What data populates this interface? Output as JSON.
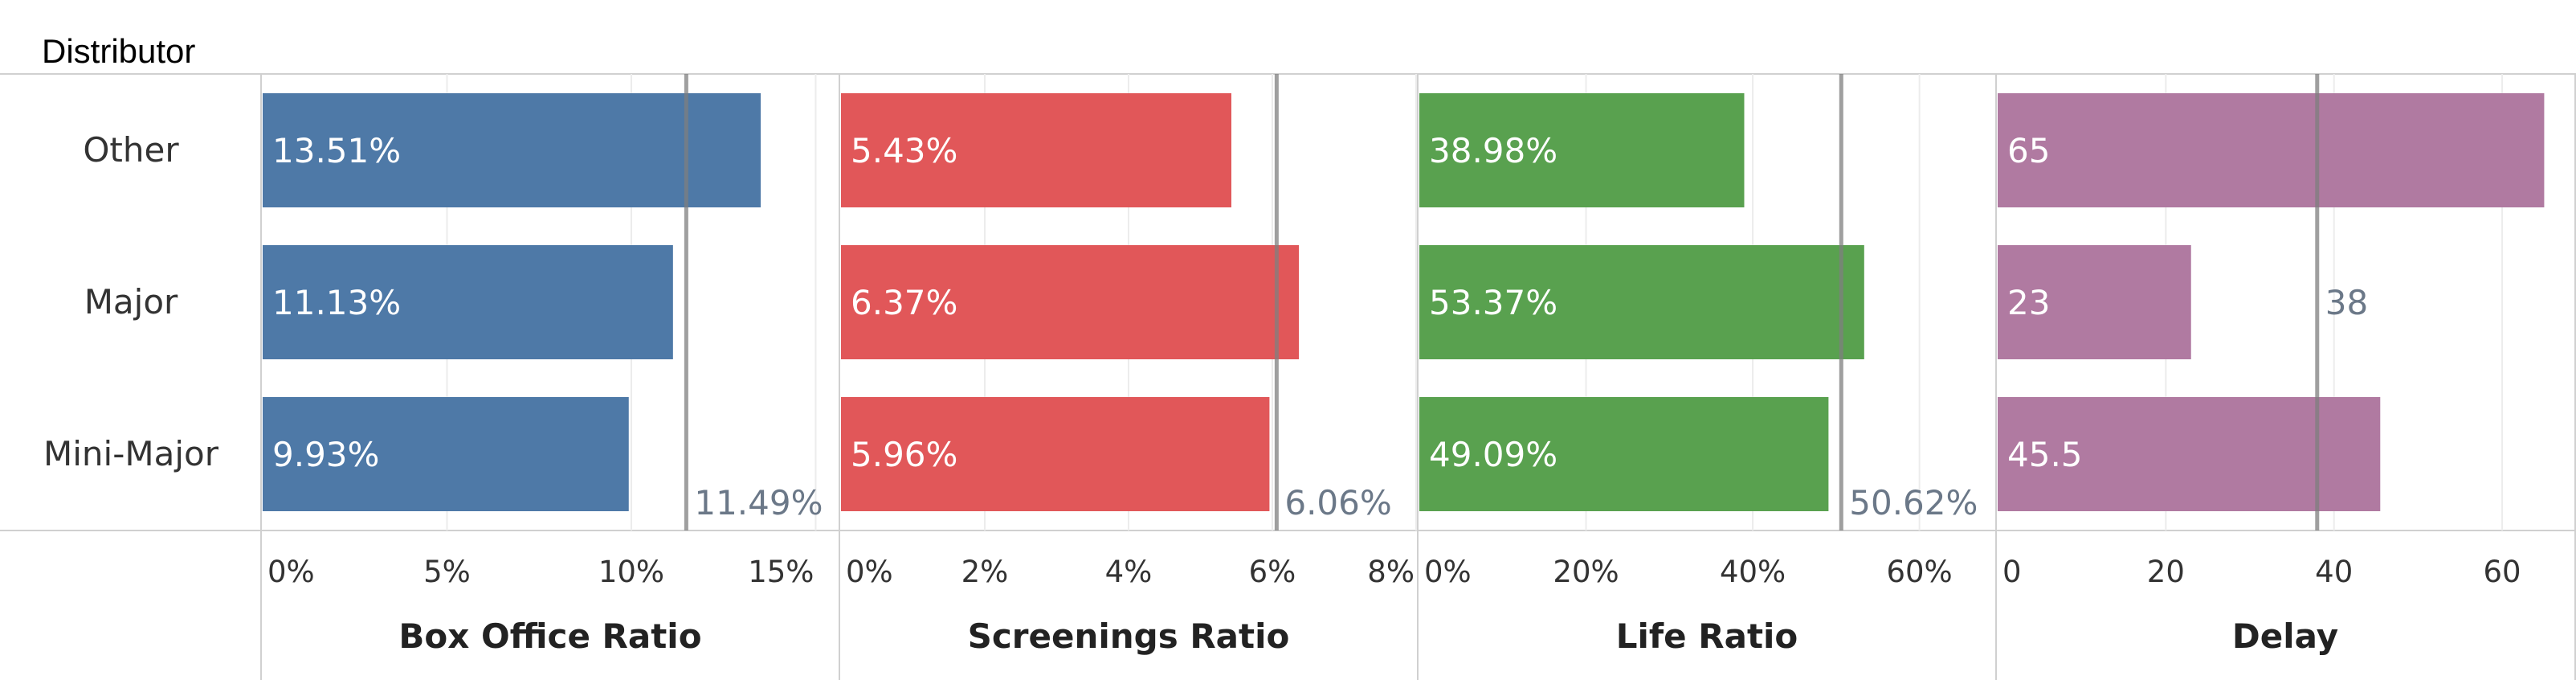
{
  "header": {
    "row_dimension_label": "Distributor"
  },
  "colors": {
    "box_office": "#4e79a7",
    "screenings": "#e15759",
    "life": "#59a14f",
    "delay": "#b07aa1",
    "reference_line": "#7f7f7f",
    "reference_label": "#6b7888",
    "grid": "#ececec",
    "border": "#d0d0d0"
  },
  "chart_data": {
    "type": "bar",
    "orientation": "horizontal",
    "categories": [
      "Other",
      "Major",
      "Mini-Major"
    ],
    "panels": [
      {
        "id": "box_office",
        "axis_title": "Box Office Ratio",
        "color_key": "box_office",
        "values": [
          13.51,
          11.13,
          9.93
        ],
        "value_labels": [
          "13.51%",
          "11.13%",
          "9.93%"
        ],
        "reference_value": 11.49,
        "reference_label": "11.49%",
        "reference_label_row": 2,
        "xlim": [
          0,
          15.6
        ],
        "ticks": [
          0,
          5,
          10,
          15
        ],
        "tick_labels": [
          "0%",
          "5%",
          "10%",
          "15%"
        ]
      },
      {
        "id": "screenings",
        "axis_title": "Screenings Ratio",
        "color_key": "screenings",
        "values": [
          5.43,
          6.37,
          5.96
        ],
        "value_labels": [
          "5.43%",
          "6.37%",
          "5.96%"
        ],
        "reference_value": 6.06,
        "reference_label": "6.06%",
        "reference_label_row": 2,
        "xlim": [
          0,
          8.0
        ],
        "ticks": [
          0,
          2,
          4,
          6,
          8
        ],
        "tick_labels": [
          "0%",
          "2%",
          "4%",
          "6%",
          "8%"
        ]
      },
      {
        "id": "life",
        "axis_title": "Life Ratio",
        "color_key": "life",
        "values": [
          38.98,
          53.37,
          49.09
        ],
        "value_labels": [
          "38.98%",
          "53.37%",
          "49.09%"
        ],
        "reference_value": 50.62,
        "reference_label": "50.62%",
        "reference_label_row": 2,
        "xlim": [
          0,
          69.0
        ],
        "ticks": [
          0,
          20,
          40,
          60
        ],
        "tick_labels": [
          "0%",
          "20%",
          "40%",
          "60%"
        ]
      },
      {
        "id": "delay",
        "axis_title": "Delay",
        "color_key": "delay",
        "values": [
          65,
          23,
          45.5
        ],
        "value_labels": [
          "65",
          "23",
          "45.5"
        ],
        "reference_value": 38,
        "reference_label": "38",
        "reference_label_row": 1,
        "xlim": [
          0,
          68.4
        ],
        "ticks": [
          0,
          20,
          40,
          60
        ],
        "tick_labels": [
          "0",
          "20",
          "40",
          "60"
        ]
      }
    ]
  }
}
